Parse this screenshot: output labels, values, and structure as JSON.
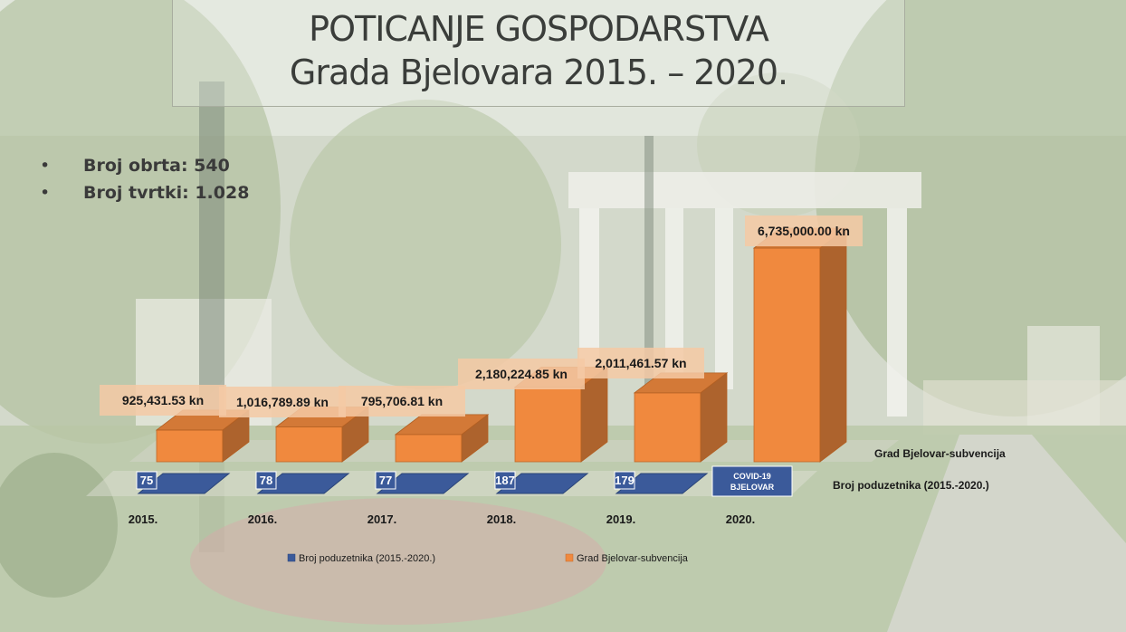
{
  "title": {
    "line1": "POTICANJE GOSPODARSTVA",
    "line2": "Grada Bjelovara 2015. – 2020."
  },
  "bullets": [
    {
      "symbol": "•",
      "text": "Broj obrta: 540"
    },
    {
      "symbol": "•",
      "text": "Broj tvrtki: 1.028"
    }
  ],
  "chart_data": {
    "type": "bar",
    "style": "3d",
    "categories": [
      "2015.",
      "2016.",
      "2017.",
      "2018.",
      "2019.",
      "2020."
    ],
    "series": [
      {
        "name": "Broj poduzetnika (2015.-2020.)",
        "color": "#3b5a9a",
        "values": [
          75,
          78,
          77,
          187,
          179,
          null
        ],
        "data_labels": [
          "75",
          "78",
          "77",
          "187",
          "179",
          "COVID-19 BJELOVAR"
        ]
      },
      {
        "name": "Grad Bjelovar-subvencija",
        "color": "#f0893e",
        "values": [
          925431.53,
          1016789.89,
          795706.81,
          2180224.85,
          2011461.57,
          6735000.0
        ],
        "data_labels": [
          "925,431.53 kn",
          "1,016,789.89 kn",
          "795,706.81 kn",
          "2,180,224.85 kn",
          "2,011,461.57 kn",
          "6,735,000.00 kn"
        ]
      }
    ],
    "depth_labels": [
      "Grad Bjelovar-subvencija",
      "Broj poduzetnika (2015.-2020.)"
    ],
    "legend_position": "bottom",
    "ylim": [
      0,
      7000000
    ]
  }
}
